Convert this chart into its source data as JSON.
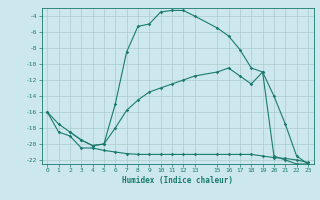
{
  "title": "",
  "xlabel": "Humidex (Indice chaleur)",
  "bg_color": "#cce8ee",
  "grid_color": "#aacccc",
  "line_color": "#1a7a6e",
  "xlim": [
    -0.5,
    23.5
  ],
  "ylim": [
    -22.5,
    -3.0
  ],
  "xticks": [
    0,
    1,
    2,
    3,
    4,
    5,
    6,
    7,
    8,
    9,
    10,
    11,
    12,
    13,
    15,
    16,
    17,
    18,
    19,
    20,
    21,
    22,
    23
  ],
  "yticks": [
    -4,
    -6,
    -8,
    -10,
    -12,
    -14,
    -16,
    -18,
    -20,
    -22
  ],
  "curve1_x": [
    0,
    1,
    2,
    3,
    4,
    5,
    6,
    7,
    8,
    9,
    10,
    11,
    12,
    13,
    15,
    16,
    17,
    18,
    19,
    20,
    21,
    22,
    23
  ],
  "curve1_y": [
    -16,
    -17.5,
    -18.5,
    -19.5,
    -20.2,
    -20.0,
    -15.0,
    -8.5,
    -5.3,
    -5.0,
    -3.5,
    -3.3,
    -3.3,
    -4.0,
    -5.5,
    -6.5,
    -8.2,
    -10.5,
    -11.0,
    -21.5,
    -22.0,
    -22.5,
    -22.5
  ],
  "curve2_x": [
    2,
    3,
    4,
    5,
    6,
    7,
    8,
    9,
    10,
    11,
    12,
    13,
    15,
    16,
    17,
    18,
    19,
    20,
    21,
    22,
    23
  ],
  "curve2_y": [
    -18.5,
    -19.5,
    -20.2,
    -20.0,
    -18.0,
    -15.8,
    -14.5,
    -13.5,
    -13.0,
    -12.5,
    -12.0,
    -11.5,
    -11.0,
    -10.5,
    -11.5,
    -12.5,
    -11.0,
    -14.0,
    -17.5,
    -21.5,
    -22.5
  ],
  "curve3_x": [
    0,
    1,
    2,
    3,
    4,
    5,
    6,
    7,
    8,
    9,
    10,
    11,
    12,
    13,
    15,
    16,
    17,
    18,
    19,
    20,
    21,
    22,
    23
  ],
  "curve3_y": [
    -16,
    -18.5,
    -19.0,
    -20.5,
    -20.5,
    -20.8,
    -21.0,
    -21.2,
    -21.3,
    -21.3,
    -21.3,
    -21.3,
    -21.3,
    -21.3,
    -21.3,
    -21.3,
    -21.3,
    -21.3,
    -21.5,
    -21.7,
    -21.8,
    -22.0,
    -22.3
  ]
}
